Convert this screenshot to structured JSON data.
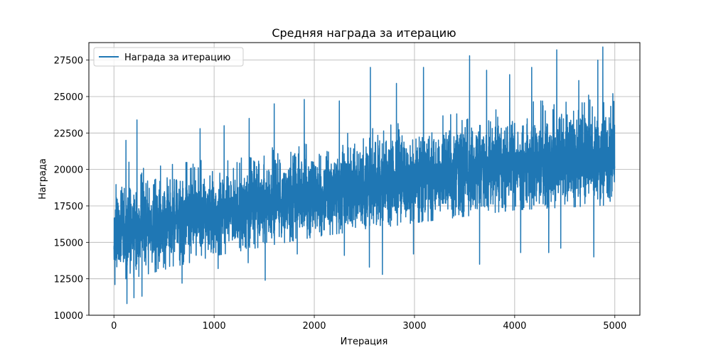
{
  "chart_data": {
    "type": "line",
    "title": "Средняя награда за итерацию",
    "xlabel": "Итерация",
    "ylabel": "Награда",
    "xlim": [
      -250,
      5250
    ],
    "ylim": [
      10000,
      28700
    ],
    "xticks": [
      0,
      1000,
      2000,
      3000,
      4000,
      5000
    ],
    "yticks": [
      10000,
      12500,
      15000,
      17500,
      20000,
      22500,
      25000,
      27500
    ],
    "grid": true,
    "legend_position": "upper-left",
    "series": [
      {
        "name": "Награда за итерацию",
        "color": "#1f77b4",
        "n_points": 5000,
        "trend": {
          "x": [
            0,
            1000,
            2000,
            3000,
            4000,
            5000
          ],
          "mean": [
            15600,
            16900,
            18300,
            19500,
            20300,
            21000
          ]
        },
        "band": {
          "x": [
            0,
            1000,
            2000,
            3000,
            4000,
            5000
          ],
          "low": [
            12800,
            14600,
            15900,
            16900,
            17800,
            18200
          ],
          "high": [
            19200,
            20200,
            21500,
            22800,
            23900,
            24700
          ]
        },
        "spikes_high": [
          [
            50,
            17000
          ],
          [
            120,
            22000
          ],
          [
            150,
            20500
          ],
          [
            230,
            23400
          ],
          [
            680,
            23900
          ],
          [
            860,
            22800
          ],
          [
            1100,
            23000
          ],
          [
            1350,
            23500
          ],
          [
            1600,
            24500
          ],
          [
            1900,
            24800
          ],
          [
            2250,
            24700
          ],
          [
            2560,
            27000
          ],
          [
            2820,
            25900
          ],
          [
            3090,
            27000
          ],
          [
            3550,
            27800
          ],
          [
            3720,
            26800
          ],
          [
            3950,
            26500
          ],
          [
            4170,
            27000
          ],
          [
            4420,
            28200
          ],
          [
            4640,
            26100
          ],
          [
            4830,
            27500
          ],
          [
            4880,
            28400
          ],
          [
            4980,
            25200
          ]
        ],
        "spikes_low": [
          [
            10,
            12100
          ],
          [
            130,
            10800
          ],
          [
            200,
            11200
          ],
          [
            280,
            11300
          ],
          [
            680,
            12200
          ],
          [
            1040,
            13200
          ],
          [
            1340,
            13600
          ],
          [
            1510,
            12400
          ],
          [
            1830,
            14200
          ],
          [
            2300,
            14100
          ],
          [
            2550,
            13300
          ],
          [
            2680,
            12800
          ],
          [
            2990,
            14200
          ],
          [
            3650,
            13500
          ],
          [
            4060,
            14300
          ],
          [
            4340,
            14300
          ],
          [
            4460,
            14600
          ],
          [
            4790,
            14000
          ]
        ]
      }
    ]
  }
}
